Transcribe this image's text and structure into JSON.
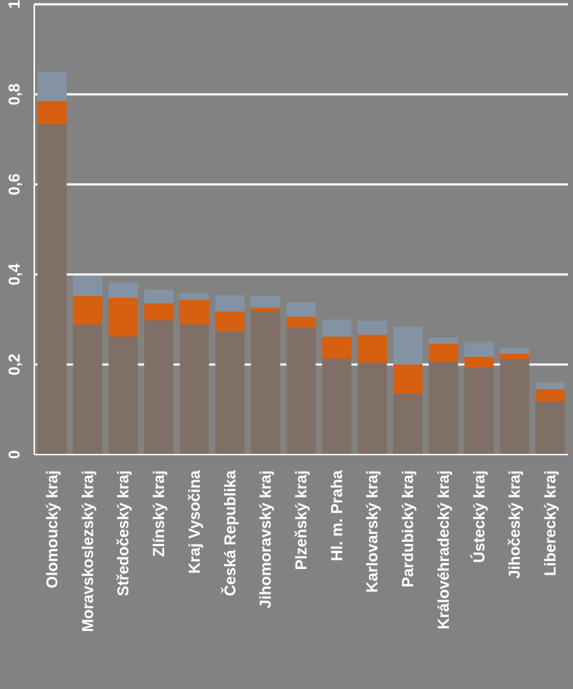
{
  "chart_data": {
    "type": "bar",
    "stacked": true,
    "title": "",
    "xlabel": "",
    "ylabel": "",
    "ylim": [
      0,
      1
    ],
    "y_ticks": [
      "0",
      "0,2",
      "0,4",
      "0,6",
      "0,8",
      "1"
    ],
    "grid": true,
    "legend": "none",
    "categories": [
      "Olomoucký kraj",
      "Moravskoslezský kraj",
      "Středočeský kraj",
      "Zlínský kraj",
      "Kraj Vysočina",
      "Česká Republika",
      "Jihomoravský kraj",
      "Plzeňský kraj",
      "Hl. m. Praha",
      "Karlovarský kraj",
      "Pardubický kraj",
      "Královéhradecký kraj",
      "Ústecký kraj",
      "Jihočeský kraj",
      "Liberecký kraj"
    ],
    "series": [
      {
        "color": "#7f6f67",
        "values": [
          0.734,
          0.289,
          0.262,
          0.298,
          0.289,
          0.274,
          0.319,
          0.283,
          0.213,
          0.204,
          0.135,
          0.206,
          0.194,
          0.212,
          0.118
        ]
      },
      {
        "color": "#d75f10",
        "values": [
          0.051,
          0.063,
          0.086,
          0.038,
          0.055,
          0.044,
          0.007,
          0.023,
          0.049,
          0.062,
          0.065,
          0.04,
          0.023,
          0.012,
          0.027
        ]
      },
      {
        "color": "#8493a3",
        "values": [
          0.065,
          0.045,
          0.034,
          0.03,
          0.014,
          0.036,
          0.026,
          0.032,
          0.038,
          0.031,
          0.084,
          0.014,
          0.033,
          0.012,
          0.016
        ]
      }
    ]
  }
}
